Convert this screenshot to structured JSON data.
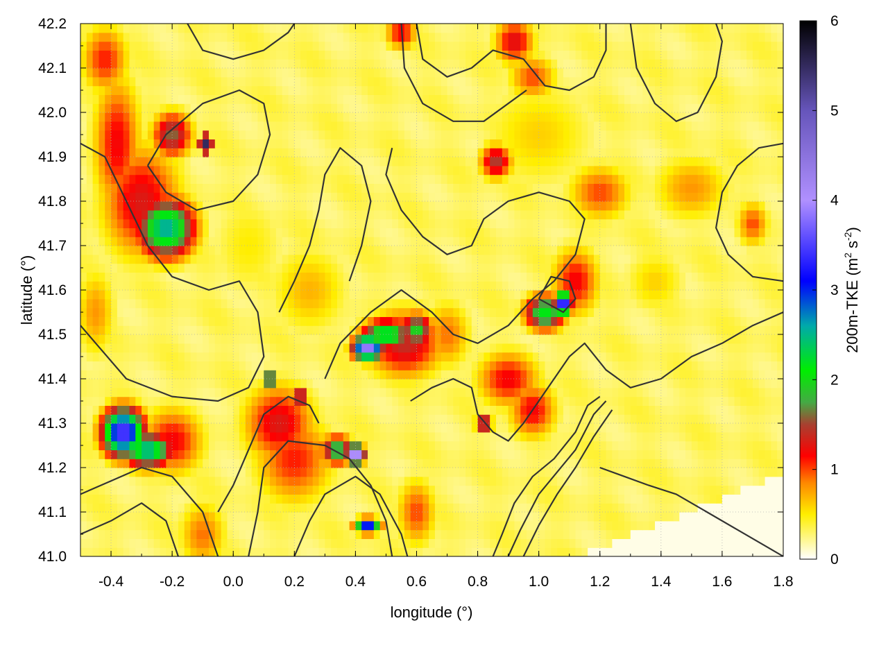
{
  "chart_data": {
    "type": "heatmap",
    "xlabel": "longitude (°)",
    "ylabel": "latitude (°)",
    "xlim": [
      -0.5,
      1.8
    ],
    "ylim": [
      41.0,
      42.2
    ],
    "xticks": [
      "-0.4",
      "-0.2",
      "0.0",
      "0.2",
      "0.4",
      "0.6",
      "0.8",
      "1.0",
      "1.2",
      "1.4",
      "1.6",
      "1.8"
    ],
    "xtick_values": [
      -0.4,
      -0.2,
      0.0,
      0.2,
      0.4,
      0.6,
      0.8,
      1.0,
      1.2,
      1.4,
      1.6,
      1.8
    ],
    "yticks": [
      "41.0",
      "41.1",
      "41.2",
      "41.3",
      "41.4",
      "41.5",
      "41.6",
      "41.7",
      "41.8",
      "41.9",
      "42.0",
      "42.1",
      "42.2"
    ],
    "ytick_values": [
      41.0,
      41.1,
      41.2,
      41.3,
      41.4,
      41.5,
      41.6,
      41.7,
      41.8,
      41.9,
      42.0,
      42.1,
      42.2
    ],
    "grid": true,
    "colorbar": {
      "label_main": "200m-TKE (m",
      "label_sup1": "2",
      "label_mid": " s",
      "label_sup2": "-2",
      "label_end": ")",
      "range": [
        0,
        6
      ],
      "ticks": [
        "0",
        "1",
        "2",
        "3",
        "4",
        "5",
        "6"
      ],
      "tick_values": [
        0,
        1,
        2,
        3,
        4,
        5,
        6
      ],
      "palette": [
        {
          "v": 0.0,
          "c": "#ffffff"
        },
        {
          "v": 0.5,
          "c": "#ffee00"
        },
        {
          "v": 0.85,
          "c": "#ff8800"
        },
        {
          "v": 1.15,
          "c": "#ff0000"
        },
        {
          "v": 1.5,
          "c": "#a84030"
        },
        {
          "v": 1.75,
          "c": "#44aa44"
        },
        {
          "v": 2.1,
          "c": "#00ee00"
        },
        {
          "v": 2.6,
          "c": "#00aaaa"
        },
        {
          "v": 3.1,
          "c": "#0000ff"
        },
        {
          "v": 4.0,
          "c": "#b090ff"
        },
        {
          "v": 5.0,
          "c": "#6655bb"
        },
        {
          "v": 6.0,
          "c": "#000000"
        }
      ]
    },
    "hotspots": [
      {
        "lon": -0.38,
        "lat": 41.93,
        "value": 1.2,
        "sx": 0.06,
        "sy": 0.12
      },
      {
        "lon": -0.22,
        "lat": 41.74,
        "value": 2.6,
        "sx": 0.07,
        "sy": 0.05
      },
      {
        "lon": -0.3,
        "lat": 41.8,
        "value": 1.3,
        "sx": 0.1,
        "sy": 0.1
      },
      {
        "lon": -0.42,
        "lat": 42.12,
        "value": 1.1,
        "sx": 0.06,
        "sy": 0.06
      },
      {
        "lon": -0.2,
        "lat": 41.95,
        "value": 1.6,
        "sx": 0.05,
        "sy": 0.04
      },
      {
        "lon": -0.09,
        "lat": 41.93,
        "value": 5.5,
        "sx": 0.012,
        "sy": 0.012
      },
      {
        "lon": -0.36,
        "lat": 41.28,
        "value": 3.6,
        "sx": 0.05,
        "sy": 0.04
      },
      {
        "lon": -0.28,
        "lat": 41.24,
        "value": 2.6,
        "sx": 0.06,
        "sy": 0.03
      },
      {
        "lon": -0.2,
        "lat": 41.26,
        "value": 1.2,
        "sx": 0.08,
        "sy": 0.06
      },
      {
        "lon": -0.1,
        "lat": 41.05,
        "value": 0.9,
        "sx": 0.06,
        "sy": 0.06
      },
      {
        "lon": 0.15,
        "lat": 41.3,
        "value": 1.3,
        "sx": 0.09,
        "sy": 0.07
      },
      {
        "lon": 0.2,
        "lat": 41.22,
        "value": 1.1,
        "sx": 0.1,
        "sy": 0.08
      },
      {
        "lon": 0.34,
        "lat": 41.24,
        "value": 2.0,
        "sx": 0.04,
        "sy": 0.025
      },
      {
        "lon": 0.4,
        "lat": 41.23,
        "value": 4.6,
        "sx": 0.02,
        "sy": 0.015
      },
      {
        "lon": 0.12,
        "lat": 41.4,
        "value": 2.6,
        "sx": 0.015,
        "sy": 0.015
      },
      {
        "lon": 0.22,
        "lat": 41.36,
        "value": 2.4,
        "sx": 0.015,
        "sy": 0.012
      },
      {
        "lon": 0.44,
        "lat": 41.07,
        "value": 3.2,
        "sx": 0.03,
        "sy": 0.012
      },
      {
        "lon": 0.56,
        "lat": 41.48,
        "value": 1.4,
        "sx": 0.1,
        "sy": 0.06
      },
      {
        "lon": 0.5,
        "lat": 41.5,
        "value": 2.4,
        "sx": 0.06,
        "sy": 0.025
      },
      {
        "lon": 0.44,
        "lat": 41.47,
        "value": 4.0,
        "sx": 0.035,
        "sy": 0.02
      },
      {
        "lon": 0.6,
        "lat": 41.51,
        "value": 2.0,
        "sx": 0.04,
        "sy": 0.03
      },
      {
        "lon": 0.7,
        "lat": 41.5,
        "value": 0.9,
        "sx": 0.06,
        "sy": 0.06
      },
      {
        "lon": 1.08,
        "lat": 41.57,
        "value": 3.8,
        "sx": 0.02,
        "sy": 0.02
      },
      {
        "lon": 1.02,
        "lat": 41.55,
        "value": 2.2,
        "sx": 0.05,
        "sy": 0.03
      },
      {
        "lon": 1.12,
        "lat": 41.62,
        "value": 1.2,
        "sx": 0.06,
        "sy": 0.06
      },
      {
        "lon": 0.9,
        "lat": 41.4,
        "value": 1.2,
        "sx": 0.08,
        "sy": 0.05
      },
      {
        "lon": 0.98,
        "lat": 41.33,
        "value": 1.2,
        "sx": 0.06,
        "sy": 0.05
      },
      {
        "lon": 0.82,
        "lat": 41.3,
        "value": 2.2,
        "sx": 0.02,
        "sy": 0.012
      },
      {
        "lon": 0.6,
        "lat": 41.1,
        "value": 1.0,
        "sx": 0.05,
        "sy": 0.06
      },
      {
        "lon": 0.86,
        "lat": 41.89,
        "value": 1.5,
        "sx": 0.04,
        "sy": 0.03
      },
      {
        "lon": 0.55,
        "lat": 42.18,
        "value": 1.2,
        "sx": 0.04,
        "sy": 0.03
      },
      {
        "lon": 0.92,
        "lat": 42.16,
        "value": 1.3,
        "sx": 0.05,
        "sy": 0.04
      },
      {
        "lon": 0.98,
        "lat": 42.08,
        "value": 1.0,
        "sx": 0.06,
        "sy": 0.04
      },
      {
        "lon": 1.2,
        "lat": 41.82,
        "value": 1.0,
        "sx": 0.08,
        "sy": 0.05
      },
      {
        "lon": 1.5,
        "lat": 41.83,
        "value": 0.8,
        "sx": 0.1,
        "sy": 0.06
      },
      {
        "lon": 1.7,
        "lat": 41.75,
        "value": 1.0,
        "sx": 0.04,
        "sy": 0.04
      },
      {
        "lon": 0.25,
        "lat": 41.6,
        "value": 0.7,
        "sx": 0.1,
        "sy": 0.08
      },
      {
        "lon": 0.05,
        "lat": 41.7,
        "value": 0.5,
        "sx": 0.1,
        "sy": 0.1
      },
      {
        "lon": -0.45,
        "lat": 41.55,
        "value": 0.8,
        "sx": 0.05,
        "sy": 0.08
      },
      {
        "lon": 1.38,
        "lat": 41.62,
        "value": 0.6,
        "sx": 0.08,
        "sy": 0.06
      },
      {
        "lon": 1.0,
        "lat": 41.95,
        "value": 0.6,
        "sx": 0.15,
        "sy": 0.1
      }
    ],
    "contours": [
      [
        [
          -0.5,
          41.93
        ],
        [
          -0.42,
          41.9
        ],
        [
          -0.35,
          41.8
        ],
        [
          -0.28,
          41.7
        ],
        [
          -0.2,
          41.63
        ],
        [
          -0.08,
          41.6
        ],
        [
          0.02,
          41.62
        ],
        [
          0.08,
          41.55
        ],
        [
          0.1,
          41.45
        ],
        [
          0.05,
          41.38
        ],
        [
          -0.05,
          41.35
        ],
        [
          -0.2,
          41.36
        ],
        [
          -0.35,
          41.4
        ],
        [
          -0.45,
          41.48
        ],
        [
          -0.5,
          41.52
        ]
      ],
      [
        [
          -0.28,
          41.88
        ],
        [
          -0.22,
          41.82
        ],
        [
          -0.12,
          41.78
        ],
        [
          0.0,
          41.8
        ],
        [
          0.08,
          41.86
        ],
        [
          0.12,
          41.95
        ],
        [
          0.1,
          42.02
        ],
        [
          0.02,
          42.05
        ],
        [
          -0.1,
          42.02
        ],
        [
          -0.22,
          41.95
        ],
        [
          -0.28,
          41.88
        ]
      ],
      [
        [
          -0.5,
          41.14
        ],
        [
          -0.4,
          41.17
        ],
        [
          -0.3,
          41.2
        ],
        [
          -0.2,
          41.18
        ],
        [
          -0.1,
          41.1
        ],
        [
          -0.05,
          41.0
        ]
      ],
      [
        [
          -0.5,
          41.05
        ],
        [
          -0.4,
          41.08
        ],
        [
          -0.3,
          41.12
        ],
        [
          -0.22,
          41.08
        ],
        [
          -0.18,
          41.0
        ]
      ],
      [
        [
          0.05,
          41.0
        ],
        [
          0.08,
          41.1
        ],
        [
          0.1,
          41.2
        ],
        [
          0.18,
          41.26
        ],
        [
          0.3,
          41.25
        ],
        [
          0.38,
          41.22
        ],
        [
          0.45,
          41.16
        ],
        [
          0.5,
          41.08
        ],
        [
          0.52,
          41.0
        ]
      ],
      [
        [
          0.2,
          41.0
        ],
        [
          0.25,
          41.08
        ],
        [
          0.3,
          41.14
        ],
        [
          0.4,
          41.18
        ],
        [
          0.48,
          41.14
        ],
        [
          0.55,
          41.05
        ],
        [
          0.57,
          41.0
        ]
      ],
      [
        [
          0.3,
          41.4
        ],
        [
          0.35,
          41.48
        ],
        [
          0.45,
          41.55
        ],
        [
          0.55,
          41.6
        ],
        [
          0.65,
          41.55
        ],
        [
          0.72,
          41.5
        ],
        [
          0.8,
          41.48
        ],
        [
          0.9,
          41.52
        ],
        [
          0.98,
          41.58
        ],
        [
          1.05,
          41.62
        ],
        [
          1.12,
          41.68
        ],
        [
          1.15,
          41.76
        ],
        [
          1.1,
          41.8
        ],
        [
          1.0,
          41.82
        ],
        [
          0.9,
          41.8
        ],
        [
          0.82,
          41.76
        ],
        [
          0.78,
          41.7
        ],
        [
          0.7,
          41.68
        ],
        [
          0.62,
          41.72
        ],
        [
          0.55,
          41.78
        ],
        [
          0.5,
          41.86
        ],
        [
          0.52,
          41.92
        ]
      ],
      [
        [
          0.15,
          41.55
        ],
        [
          0.2,
          41.62
        ],
        [
          0.25,
          41.7
        ],
        [
          0.28,
          41.78
        ],
        [
          0.3,
          41.86
        ],
        [
          0.35,
          41.92
        ],
        [
          0.42,
          41.88
        ],
        [
          0.45,
          41.8
        ],
        [
          0.42,
          41.7
        ],
        [
          0.38,
          41.62
        ]
      ],
      [
        [
          1.8,
          41.55
        ],
        [
          1.7,
          41.52
        ],
        [
          1.6,
          41.48
        ],
        [
          1.5,
          41.45
        ],
        [
          1.4,
          41.4
        ],
        [
          1.3,
          41.38
        ],
        [
          1.22,
          41.42
        ],
        [
          1.15,
          41.48
        ],
        [
          1.1,
          41.45
        ],
        [
          1.05,
          41.4
        ],
        [
          1.0,
          41.35
        ],
        [
          0.95,
          41.3
        ],
        [
          0.9,
          41.26
        ],
        [
          0.85,
          41.28
        ],
        [
          0.8,
          41.32
        ],
        [
          0.78,
          41.38
        ],
        [
          0.72,
          41.4
        ],
        [
          0.65,
          41.38
        ],
        [
          0.58,
          41.35
        ]
      ],
      [
        [
          0.85,
          41.0
        ],
        [
          0.88,
          41.05
        ],
        [
          0.92,
          41.12
        ],
        [
          0.98,
          41.18
        ],
        [
          1.05,
          41.22
        ],
        [
          1.12,
          41.28
        ],
        [
          1.16,
          41.34
        ],
        [
          1.2,
          41.36
        ]
      ],
      [
        [
          0.9,
          41.0
        ],
        [
          0.94,
          41.06
        ],
        [
          1.0,
          41.14
        ],
        [
          1.06,
          41.19
        ],
        [
          1.12,
          41.24
        ],
        [
          1.18,
          41.32
        ],
        [
          1.22,
          41.35
        ]
      ],
      [
        [
          0.95,
          41.0
        ],
        [
          1.0,
          41.07
        ],
        [
          1.06,
          41.14
        ],
        [
          1.12,
          41.2
        ],
        [
          1.18,
          41.27
        ],
        [
          1.24,
          41.33
        ]
      ],
      [
        [
          1.8,
          41.62
        ],
        [
          1.7,
          41.63
        ],
        [
          1.62,
          41.68
        ],
        [
          1.58,
          41.74
        ],
        [
          1.6,
          41.82
        ],
        [
          1.65,
          41.88
        ],
        [
          1.72,
          41.92
        ],
        [
          1.8,
          41.93
        ]
      ],
      [
        [
          1.3,
          42.2
        ],
        [
          1.32,
          42.1
        ],
        [
          1.38,
          42.02
        ],
        [
          1.45,
          41.98
        ],
        [
          1.52,
          42.0
        ],
        [
          1.58,
          42.08
        ],
        [
          1.6,
          42.16
        ],
        [
          1.58,
          42.2
        ]
      ],
      [
        [
          -0.15,
          42.2
        ],
        [
          -0.1,
          42.14
        ],
        [
          0.0,
          42.12
        ],
        [
          0.1,
          42.14
        ],
        [
          0.18,
          42.18
        ],
        [
          0.2,
          42.2
        ]
      ],
      [
        [
          0.6,
          42.2
        ],
        [
          0.62,
          42.12
        ],
        [
          0.7,
          42.08
        ],
        [
          0.78,
          42.1
        ],
        [
          0.85,
          42.14
        ],
        [
          0.95,
          42.12
        ],
        [
          1.02,
          42.06
        ],
        [
          1.1,
          42.05
        ],
        [
          1.18,
          42.08
        ],
        [
          1.22,
          42.14
        ],
        [
          1.22,
          42.2
        ]
      ],
      [
        [
          0.55,
          42.2
        ],
        [
          0.56,
          42.1
        ],
        [
          0.62,
          42.02
        ],
        [
          0.72,
          41.98
        ],
        [
          0.82,
          41.98
        ],
        [
          0.9,
          42.02
        ],
        [
          0.96,
          42.05
        ]
      ],
      [
        [
          1.2,
          41.2
        ],
        [
          1.28,
          41.18
        ],
        [
          1.36,
          41.16
        ],
        [
          1.45,
          41.14
        ],
        [
          1.55,
          41.1
        ],
        [
          1.65,
          41.06
        ],
        [
          1.75,
          41.02
        ],
        [
          1.8,
          41.0
        ]
      ],
      [
        [
          1.0,
          41.58
        ],
        [
          1.08,
          41.55
        ],
        [
          1.12,
          41.58
        ],
        [
          1.1,
          41.62
        ],
        [
          1.04,
          41.63
        ],
        [
          1.0,
          41.58
        ]
      ],
      [
        [
          -0.05,
          41.1
        ],
        [
          0.0,
          41.16
        ],
        [
          0.05,
          41.24
        ],
        [
          0.1,
          41.32
        ],
        [
          0.18,
          41.36
        ],
        [
          0.25,
          41.34
        ],
        [
          0.28,
          41.3
        ]
      ]
    ]
  }
}
